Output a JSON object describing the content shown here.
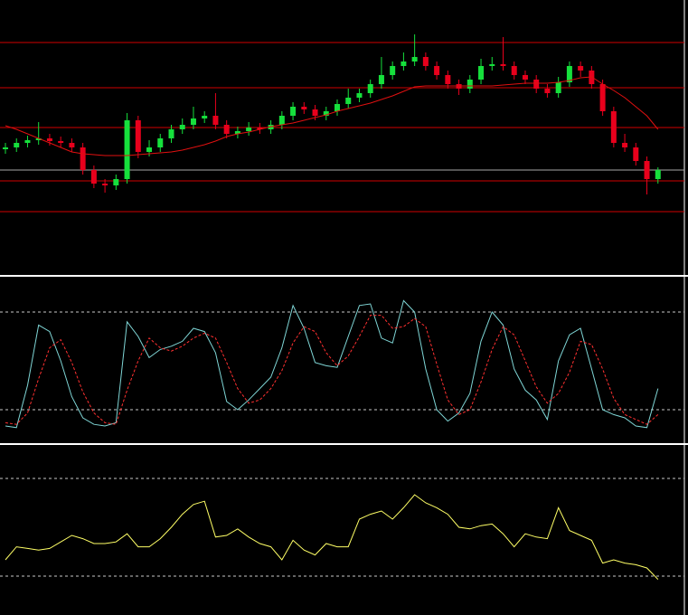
{
  "chart_data": [
    {
      "type": "candlestick",
      "ylim": [
        0,
        303
      ],
      "up_color": "#16e03c",
      "down_color": "#e8001c",
      "open": [
        138,
        140,
        145,
        148,
        150,
        147,
        145,
        140,
        115,
        100,
        98,
        105,
        170,
        135,
        140,
        150,
        160,
        165,
        172,
        175,
        165,
        155,
        158,
        162,
        160,
        165,
        175,
        185,
        182,
        175,
        180,
        188,
        195,
        200,
        210,
        220,
        230,
        235,
        240,
        230,
        220,
        210,
        205,
        215,
        230,
        232,
        230,
        220,
        215,
        205,
        200,
        212,
        230,
        225,
        210,
        180,
        145,
        140,
        125,
        105
      ],
      "high": [
        145,
        150,
        153,
        168,
        155,
        152,
        150,
        145,
        120,
        105,
        110,
        178,
        175,
        148,
        155,
        165,
        172,
        185,
        180,
        200,
        170,
        163,
        168,
        167,
        170,
        180,
        190,
        190,
        187,
        185,
        193,
        205,
        205,
        215,
        240,
        235,
        245,
        265,
        245,
        235,
        225,
        215,
        220,
        238,
        240,
        262,
        235,
        225,
        220,
        210,
        218,
        235,
        235,
        230,
        215,
        185,
        155,
        145,
        130,
        118
      ],
      "low": [
        133,
        135,
        140,
        143,
        142,
        140,
        135,
        110,
        95,
        90,
        93,
        100,
        128,
        130,
        135,
        145,
        155,
        160,
        167,
        160,
        150,
        150,
        153,
        155,
        155,
        160,
        170,
        177,
        170,
        170,
        175,
        183,
        190,
        195,
        205,
        215,
        225,
        230,
        225,
        215,
        205,
        198,
        200,
        210,
        225,
        225,
        215,
        210,
        200,
        195,
        195,
        207,
        218,
        205,
        175,
        140,
        135,
        120,
        88,
        100
      ],
      "close": [
        140,
        145,
        148,
        150,
        147,
        145,
        140,
        115,
        100,
        98,
        105,
        170,
        135,
        140,
        150,
        160,
        165,
        172,
        175,
        165,
        155,
        158,
        162,
        160,
        165,
        175,
        185,
        182,
        175,
        180,
        188,
        195,
        200,
        210,
        220,
        230,
        235,
        240,
        230,
        220,
        210,
        205,
        215,
        230,
        232,
        230,
        220,
        215,
        205,
        200,
        212,
        230,
        225,
        210,
        180,
        145,
        140,
        125,
        105,
        115
      ],
      "series": [
        {
          "color": "#e01010",
          "values": [
            164,
            160,
            155,
            150,
            145,
            140,
            135,
            133,
            132,
            131,
            131,
            131,
            132,
            133,
            134,
            135,
            137,
            140,
            143,
            147,
            152,
            155,
            157,
            160,
            163,
            165,
            167,
            170,
            173,
            176,
            180,
            183,
            186,
            189,
            193,
            197,
            202,
            207,
            208,
            208,
            208,
            208,
            208,
            208,
            208,
            209,
            210,
            211,
            211,
            211,
            212,
            214,
            217,
            218,
            210,
            203,
            195,
            185,
            175,
            160
          ]
        }
      ],
      "hlines": [
        {
          "value": 256,
          "color": "#d00000"
        },
        {
          "value": 206,
          "color": "#d00000"
        },
        {
          "value": 162,
          "color": "#d00000"
        },
        {
          "value": 115,
          "color": "#a8a8a8"
        },
        {
          "value": 103,
          "color": "#d00000"
        },
        {
          "value": 69,
          "color": "#d00000"
        }
      ]
    },
    {
      "type": "line",
      "ylim": [
        0,
        100
      ],
      "levels": [
        20,
        80
      ],
      "series": [
        {
          "color": "#7fd6d6",
          "dash": false,
          "values": [
            10,
            9,
            35,
            72,
            68,
            50,
            28,
            15,
            11,
            10,
            12,
            74,
            65,
            52,
            57,
            59,
            62,
            70,
            68,
            55,
            25,
            20,
            26,
            33,
            40,
            58,
            84,
            70,
            49,
            47,
            46,
            65,
            84,
            85,
            64,
            61,
            87,
            80,
            45,
            20,
            13,
            18,
            30,
            62,
            80,
            72,
            45,
            32,
            26,
            14,
            50,
            66,
            70,
            45,
            20,
            17,
            15,
            10,
            9,
            33
          ]
        },
        {
          "color": "#ff3030",
          "dash": true,
          "values": [
            12,
            11,
            18,
            39,
            58,
            63,
            49,
            31,
            18,
            12,
            11,
            32,
            50,
            64,
            58,
            56,
            59,
            64,
            67,
            64,
            49,
            33,
            24,
            26,
            33,
            44,
            61,
            71,
            68,
            55,
            47,
            53,
            65,
            78,
            78,
            70,
            71,
            76,
            71,
            48,
            26,
            17,
            20,
            37,
            57,
            71,
            66,
            50,
            34,
            24,
            30,
            43,
            62,
            60,
            45,
            27,
            17,
            14,
            11,
            17
          ]
        }
      ]
    },
    {
      "type": "line",
      "ylim": [
        0,
        100
      ],
      "levels": [
        20,
        80
      ],
      "series": [
        {
          "color": "#ffff66",
          "dash": false,
          "values": [
            30,
            38,
            37,
            36,
            37,
            41,
            45,
            43,
            40,
            40,
            41,
            46,
            38,
            38,
            43,
            50,
            58,
            64,
            66,
            44,
            45,
            49,
            44,
            40,
            38,
            30,
            42,
            36,
            33,
            40,
            38,
            38,
            55,
            58,
            60,
            55,
            62,
            70,
            65,
            62,
            58,
            50,
            49,
            51,
            52,
            46,
            38,
            46,
            44,
            43,
            62,
            48,
            45,
            42,
            28,
            30,
            28,
            27,
            25,
            18
          ]
        }
      ]
    }
  ]
}
